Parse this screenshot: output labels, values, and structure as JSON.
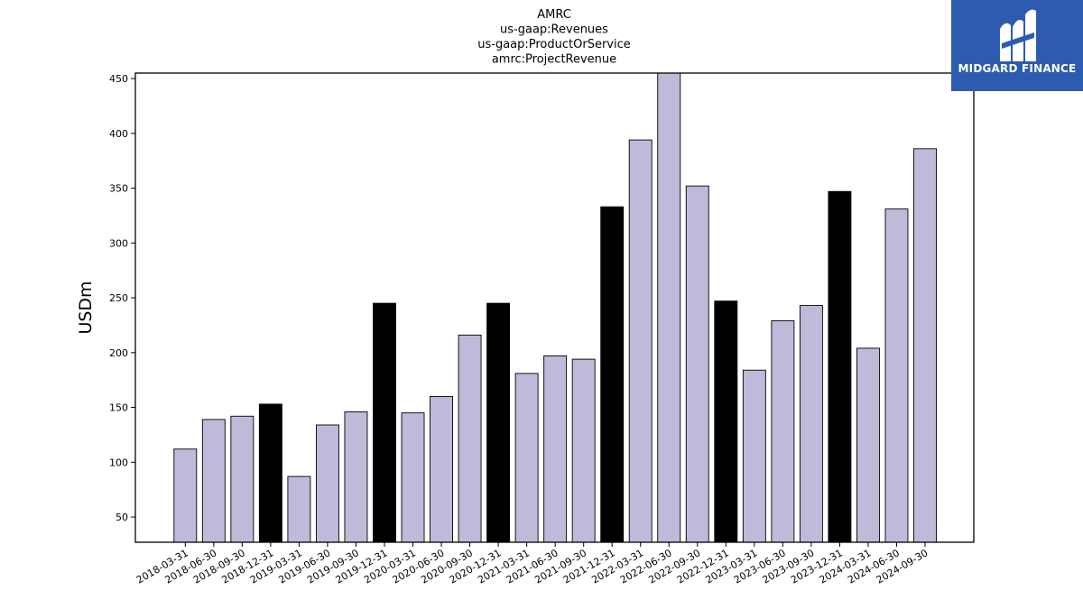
{
  "logo": {
    "text": "MIDGARD FINANCE",
    "icon": "midgard-logo-icon",
    "background": "#2d5bb0"
  },
  "chart_data": {
    "type": "bar",
    "title_lines": [
      "AMRC",
      "us-gaap:Revenues",
      "us-gaap:ProductOrService",
      "amrc:ProjectRevenue"
    ],
    "ylabel": "USDm",
    "xlabel": "",
    "ylim": [
      27,
      455
    ],
    "yticks": [
      50,
      100,
      150,
      200,
      250,
      300,
      350,
      400,
      450
    ],
    "colors": {
      "quarter": "#bebad9",
      "year_end": "#000000",
      "edge": "#000000"
    },
    "categories": [
      "2018-03-31",
      "2018-06-30",
      "2018-09-30",
      "2018-12-31",
      "2019-03-31",
      "2019-06-30",
      "2019-09-30",
      "2019-12-31",
      "2020-03-31",
      "2020-06-30",
      "2020-09-30",
      "2020-12-31",
      "2021-03-31",
      "2021-06-30",
      "2021-09-30",
      "2021-12-31",
      "2022-03-31",
      "2022-06-30",
      "2022-09-30",
      "2022-12-31",
      "2023-03-31",
      "2023-06-30",
      "2023-09-30",
      "2023-12-31",
      "2024-03-31",
      "2024-06-30",
      "2024-09-30"
    ],
    "values": [
      112,
      139,
      142,
      153,
      87,
      134,
      146,
      245,
      145,
      160,
      216,
      245,
      181,
      197,
      194,
      333,
      394,
      456,
      352,
      247,
      184,
      229,
      243,
      347,
      204,
      331,
      386
    ],
    "highlight": [
      false,
      false,
      false,
      true,
      false,
      false,
      false,
      true,
      false,
      false,
      false,
      true,
      false,
      false,
      false,
      true,
      false,
      false,
      false,
      true,
      false,
      false,
      false,
      true,
      false,
      false,
      false
    ]
  }
}
